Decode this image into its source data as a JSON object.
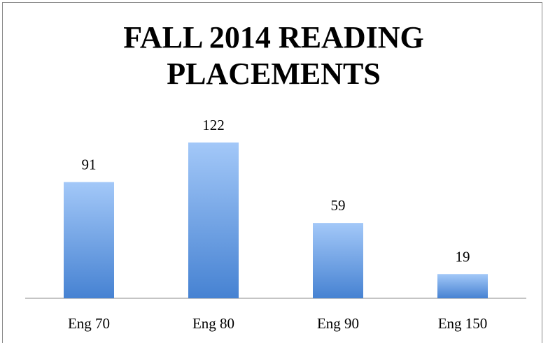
{
  "chart_data": {
    "type": "bar",
    "title": "FALL 2014 READING PLACEMENTS",
    "categories": [
      "Eng 70",
      "Eng 80",
      "Eng 90",
      "Eng 150"
    ],
    "values": [
      91,
      122,
      59,
      19
    ]
  }
}
